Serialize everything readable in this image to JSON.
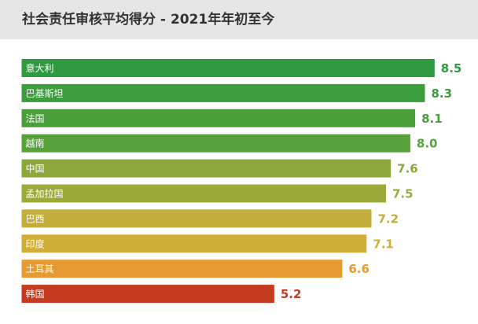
{
  "chart_data": {
    "type": "bar",
    "orientation": "horizontal",
    "title": "社会责任审核平均得分 - 2021年年初至今",
    "categories": [
      "意大利",
      "巴基斯坦",
      "法国",
      "越南",
      "中国",
      "孟加拉国",
      "巴西",
      "印度",
      "土耳其",
      "韩国"
    ],
    "values": [
      8.5,
      8.3,
      8.1,
      8.0,
      7.6,
      7.5,
      7.2,
      7.1,
      6.6,
      5.2
    ],
    "value_labels": [
      "8.5",
      "8.3",
      "8.1",
      "8.0",
      "7.6",
      "7.5",
      "7.2",
      "7.1",
      "6.6",
      "5.2"
    ],
    "colors": [
      "#2f9a3f",
      "#3c9d3c",
      "#49a03b",
      "#57a23a",
      "#8ca83a",
      "#9caa3a",
      "#c3ad3b",
      "#cfae3a",
      "#e89a32",
      "#c63a1f"
    ]
  }
}
